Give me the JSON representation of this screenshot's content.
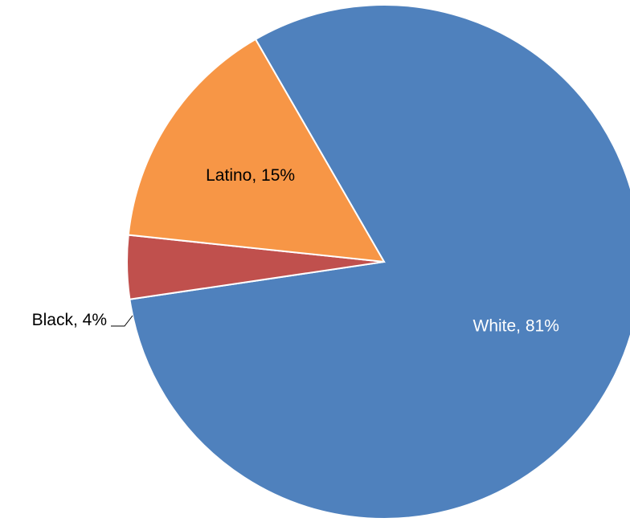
{
  "chart_data": {
    "type": "pie",
    "categories": [
      "White",
      "Black",
      "Latino"
    ],
    "values": [
      81,
      4,
      15
    ],
    "data_labels": [
      "White, 81%",
      "Black, 4%",
      "Latino, 15%"
    ],
    "colors": [
      "#4F81BD",
      "#C0504D",
      "#F79646"
    ],
    "label_colors": [
      "#FFFFFF",
      "#000000",
      "#000000"
    ],
    "start_angle_deg": -30,
    "direction": "clockwise",
    "legend": "none",
    "title": ""
  }
}
